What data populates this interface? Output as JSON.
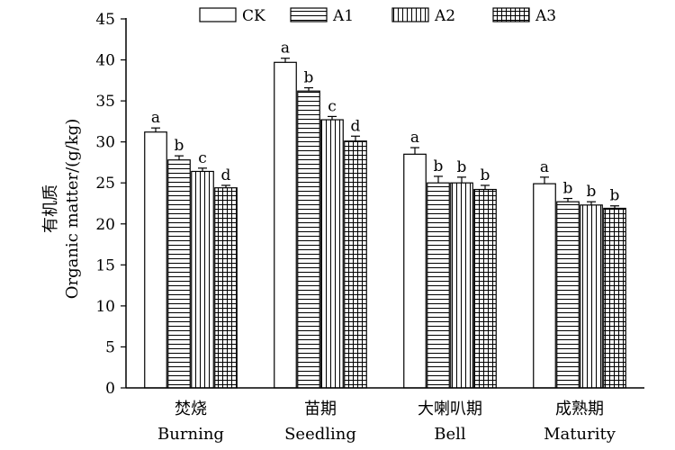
{
  "chart_data": {
    "type": "bar",
    "ylabel_zh": "有机质",
    "ylabel_en": "Organic matter/(g/kg)",
    "ylim": [
      0,
      45
    ],
    "yticks": [
      0,
      5,
      10,
      15,
      20,
      25,
      30,
      35,
      40,
      45
    ],
    "categories": [
      {
        "zh": "焚烧",
        "en": "Burning"
      },
      {
        "zh": "苗期",
        "en": "Seedling"
      },
      {
        "zh": "大喇叭期",
        "en": "Bell"
      },
      {
        "zh": "成熟期",
        "en": "Maturity"
      }
    ],
    "series": [
      {
        "name": "CK",
        "pattern": "none",
        "values": [
          31.2,
          39.7,
          28.5,
          24.9
        ],
        "errors": [
          0.5,
          0.5,
          0.8,
          0.8
        ],
        "letters": [
          "a",
          "a",
          "a",
          "a"
        ]
      },
      {
        "name": "A1",
        "pattern": "horizontal",
        "values": [
          27.8,
          36.2,
          25.0,
          22.7
        ],
        "errors": [
          0.5,
          0.4,
          0.8,
          0.4
        ],
        "letters": [
          "b",
          "b",
          "b",
          "b"
        ]
      },
      {
        "name": "A2",
        "pattern": "vertical",
        "values": [
          26.4,
          32.7,
          25.0,
          22.3
        ],
        "errors": [
          0.4,
          0.4,
          0.7,
          0.4
        ],
        "letters": [
          "c",
          "c",
          "b",
          "b"
        ]
      },
      {
        "name": "A3",
        "pattern": "grid",
        "values": [
          24.4,
          30.1,
          24.2,
          21.9
        ],
        "errors": [
          0.3,
          0.6,
          0.5,
          0.3
        ],
        "letters": [
          "d",
          "d",
          "b",
          "b"
        ]
      }
    ],
    "legend_position": "top",
    "grid": false
  }
}
